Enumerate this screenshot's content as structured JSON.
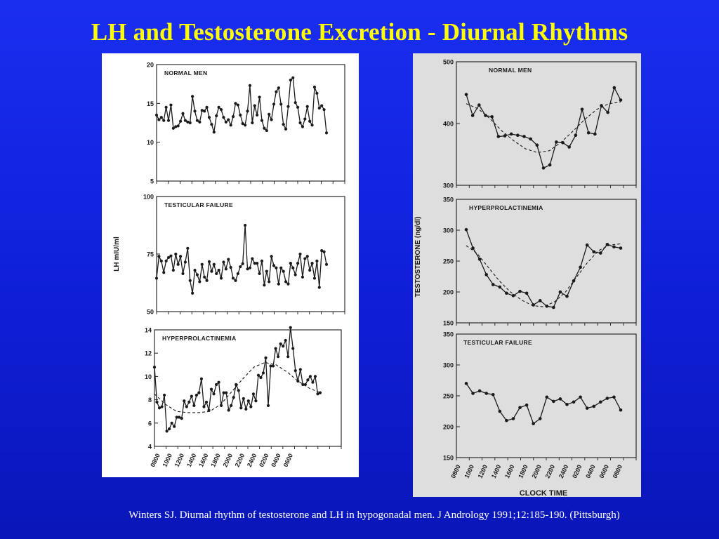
{
  "slide": {
    "title": "LH and Testosterone Excretion - Diurnal Rhythms",
    "citation": "Winters SJ.  Diurnal rhythm of testosterone and LH in hypogonadal men.  J Andrology 1991;12:185-190.  (Pittsburgh)"
  },
  "colors": {
    "background": "#1424e6",
    "title": "#ffff00",
    "citation": "#ffffff",
    "left_panel": "#ffffff",
    "right_panel": "#dedede",
    "ink": "#1a1a1a"
  },
  "chart_data": [
    {
      "type": "line",
      "group": "lh",
      "panel_label": "NORMAL MEN",
      "ylim": [
        5,
        20
      ],
      "yticks": [
        5,
        10,
        15,
        20
      ],
      "series": [
        {
          "values": [
            13.5,
            12.9,
            13.2,
            12.8,
            14.5,
            12.8,
            14.8,
            11.8,
            12.0,
            12.1,
            12.7,
            13.7,
            12.8,
            12.6,
            12.5,
            15.9,
            14.0,
            12.8,
            12.6,
            14.1,
            14.0,
            14.5,
            13.2,
            12.3,
            11.3,
            13.4,
            14.5,
            14.2,
            13.2,
            12.6,
            12.9,
            12.2,
            13.3,
            15.0,
            14.8,
            13.5,
            12.4,
            12.2,
            14.0,
            17.3,
            12.5,
            14.7,
            13.5,
            15.8,
            12.8,
            11.8,
            11.5,
            13.6,
            12.9,
            14.9,
            16.5,
            17.0,
            14.9,
            12.3,
            11.7,
            14.6,
            18.0,
            18.3,
            15.1,
            14.5,
            12.5,
            12.0,
            13.0,
            14.6,
            12.7,
            12.2,
            17.1,
            16.3,
            14.4,
            14.7,
            14.2,
            11.2
          ],
          "style": "solid"
        }
      ]
    },
    {
      "type": "line",
      "group": "lh",
      "panel_label": "TESTICULAR  FAILURE",
      "ylabel": "LH   mIU/ml",
      "ylim": [
        50,
        100
      ],
      "yticks": [
        50,
        75,
        100
      ],
      "series": [
        {
          "values": [
            64.5,
            74,
            72,
            67,
            72,
            73.5,
            74.2,
            68,
            75,
            70.5,
            74,
            66.5,
            71.5,
            77.5,
            63.5,
            58,
            68,
            66,
            63,
            70.5,
            65,
            63.5,
            71.7,
            67.5,
            70.5,
            66.5,
            68,
            64.5,
            71.5,
            68.5,
            72.7,
            69.2,
            64.5,
            63.5,
            66.5,
            69.5,
            70.8,
            87.5,
            68.5,
            69,
            73,
            71,
            71,
            66.5,
            72,
            61.5,
            67.5,
            63,
            74,
            70,
            69,
            62,
            69,
            67.5,
            63,
            62,
            71,
            69,
            66,
            71,
            75,
            65,
            73,
            74,
            68,
            71,
            64.5,
            72,
            60.5,
            76.5,
            76,
            70.5
          ],
          "style": "solid"
        }
      ]
    },
    {
      "type": "line",
      "group": "lh",
      "panel_label": "HYPERPROLACTINEMIA",
      "xlabel": "CLOCK TIME",
      "ylim": [
        4,
        14
      ],
      "yticks": [
        4,
        6,
        8,
        10,
        12,
        14
      ],
      "xticks": [
        "0800",
        "1000",
        "1200",
        "1400",
        "1600",
        "1800",
        "2000",
        "2200",
        "2400",
        "0200",
        "0400",
        "0600"
      ],
      "series": [
        {
          "values": [
            10.8,
            7.8,
            7.3,
            7.4,
            8.4,
            5.3,
            5.5,
            6.0,
            5.7,
            6.5,
            6.5,
            6.4,
            7.9,
            7.4,
            7.8,
            8.3,
            7.5,
            8.4,
            8.6,
            9.8,
            7.4,
            7.8,
            7.1,
            8.9,
            8.5,
            9.3,
            9.5,
            7.5,
            8.6,
            8.6,
            7.1,
            7.5,
            8.2,
            9.3,
            8.8,
            7.3,
            8.1,
            7.2,
            7.9,
            7.4,
            8.5,
            7.9,
            10.1,
            9.9,
            10.3,
            11.6,
            7.5,
            10.9,
            10.9,
            12.4,
            11.7,
            12.8,
            12.6,
            13.1,
            11.7,
            14.2,
            12.4,
            10.5,
            9.6,
            10.6,
            9.3,
            9.3,
            9.7,
            10.0,
            9.5,
            10.0,
            8.5,
            8.6
          ],
          "style": "solid"
        },
        {
          "values": [
            8.5,
            7.6,
            7.0,
            6.9,
            6.9,
            7.0,
            7.6,
            8.7,
            9.8,
            10.8,
            11.2,
            11.0,
            10.4,
            9.6,
            9.0,
            8.6
          ],
          "style": "dashed"
        }
      ]
    },
    {
      "type": "line",
      "group": "testosterone",
      "panel_label": "NORMAL MEN",
      "ylim": [
        300,
        500
      ],
      "yticks": [
        300,
        400,
        500
      ],
      "series": [
        {
          "values": [
            447,
            413,
            430,
            413,
            411,
            379,
            380,
            383,
            381,
            379,
            375,
            365,
            328,
            333,
            370,
            369,
            362,
            381,
            423,
            385,
            383,
            429,
            418,
            458,
            438
          ],
          "style": "solid"
        },
        {
          "values": [
            432,
            424,
            408,
            388,
            372,
            359,
            353,
            356,
            370,
            388,
            407,
            423,
            432,
            435
          ],
          "style": "dashed"
        }
      ]
    },
    {
      "type": "line",
      "group": "testosterone",
      "panel_label": "HYPERPROLACTINEMIA",
      "ylabel": "TESTOSTERONE   (ng/dl)",
      "ylim": [
        150,
        350
      ],
      "yticks": [
        150,
        200,
        250,
        300,
        350
      ],
      "series": [
        {
          "values": [
            301,
            271,
            253,
            228,
            212,
            208,
            198,
            194,
            201,
            198,
            179,
            186,
            177,
            175,
            200,
            193,
            218,
            240,
            276,
            265,
            263,
            277,
            273,
            271
          ],
          "style": "solid"
        },
        {
          "values": [
            275,
            262,
            240,
            218,
            200,
            187,
            178,
            176,
            184,
            200,
            224,
            248,
            267,
            276,
            278
          ],
          "style": "dashed"
        }
      ]
    },
    {
      "type": "line",
      "group": "testosterone",
      "panel_label": "TESTICULAR  FAILURE",
      "xlabel": "CLOCK TIME",
      "ylim": [
        150,
        350
      ],
      "yticks": [
        150,
        200,
        250,
        300,
        350
      ],
      "xticks": [
        "0800",
        "1000",
        "1200",
        "1400",
        "1600",
        "1800",
        "2000",
        "2200",
        "2400",
        "0200",
        "0400",
        "0600",
        "0800"
      ],
      "series": [
        {
          "values": [
            270,
            254,
            258,
            254,
            252,
            225,
            210,
            213,
            231,
            235,
            205,
            213,
            248,
            241,
            245,
            236,
            240,
            248,
            230,
            233,
            240,
            246,
            248,
            227
          ],
          "style": "solid"
        }
      ]
    }
  ]
}
